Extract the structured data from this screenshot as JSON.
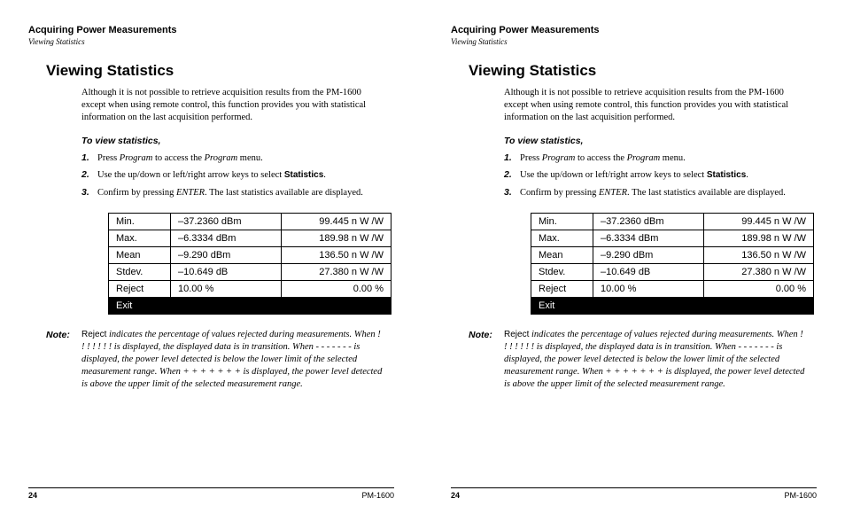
{
  "header": {
    "section": "Acquiring Power Measurements",
    "sub": "Viewing Statistics"
  },
  "heading": "Viewing Statistics",
  "intro": "Although it is not possible to retrieve acquisition results from the PM-1600 except when using remote control, this function provides you with statistical information on the last acquisition performed.",
  "toView": "To view statistics,",
  "steps": {
    "s1": {
      "num": "1.",
      "a": "Press ",
      "b": "Program",
      "c": " to access the ",
      "d": "Program",
      "e": " menu."
    },
    "s2": {
      "num": "2.",
      "a": "Use the up/down or left/right arrow keys to select ",
      "b": "Statistics",
      "c": "."
    },
    "s3": {
      "num": "3.",
      "a": "Confirm by pressing ",
      "b": "ENTER",
      "c": ". The last statistics available are displayed."
    }
  },
  "table": {
    "rows": [
      {
        "label": "Min.",
        "v1": "–37.2360 dBm",
        "v2": "99.445 n W /W"
      },
      {
        "label": "Max.",
        "v1": "–6.3334 dBm",
        "v2": "189.98 n W /W"
      },
      {
        "label": "Mean",
        "v1": "–9.290 dBm",
        "v2": "136.50 n W /W"
      },
      {
        "label": "Stdev.",
        "v1": "–10.649 dB",
        "v2": "27.380 n W /W"
      },
      {
        "label": "Reject",
        "v1": "10.00 %",
        "v2": "0.00 %"
      }
    ],
    "exit": "Exit"
  },
  "note": {
    "label": "Note:",
    "r": "Reject",
    "text": " indicates the percentage of values rejected during measurements. When  ! ! ! ! ! ! !  is displayed, the displayed data is in transition. When  - - - - - - -  is displayed, the power level detected is below the lower limit of the selected measurement range. When  + + + + + + +  is displayed, the power level detected is above the upper limit of the selected measurement range."
  },
  "footer": {
    "page": "24",
    "model": "PM-1600"
  }
}
